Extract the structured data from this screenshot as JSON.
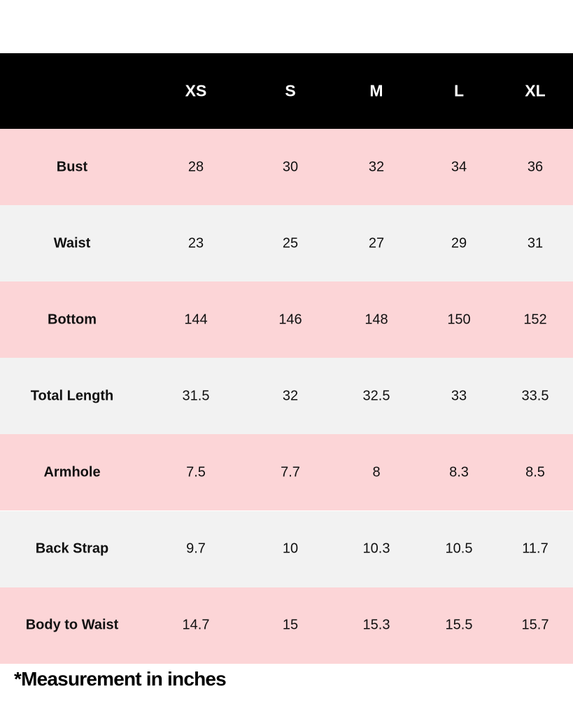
{
  "table": {
    "columns": [
      "",
      "XS",
      "S",
      "M",
      "L",
      "XL"
    ],
    "rows": [
      {
        "label": "Bust",
        "values": [
          "28",
          "30",
          "32",
          "34",
          "36"
        ]
      },
      {
        "label": "Waist",
        "values": [
          "23",
          "25",
          "27",
          "29",
          "31"
        ]
      },
      {
        "label": "Bottom",
        "values": [
          "144",
          "146",
          "148",
          "150",
          "152"
        ]
      },
      {
        "label": "Total Length",
        "values": [
          "31.5",
          "32",
          "32.5",
          "33",
          "33.5"
        ]
      },
      {
        "label": "Armhole",
        "values": [
          "7.5",
          "7.7",
          "8",
          "8.3",
          "8.5"
        ]
      },
      {
        "label": "Back Strap",
        "values": [
          "9.7",
          "10",
          "10.3",
          "10.5",
          "11.7"
        ]
      },
      {
        "label": "Body to Waist",
        "values": [
          "14.7",
          "15",
          "15.3",
          "15.5",
          "15.7"
        ]
      }
    ]
  },
  "footnote": "*Measurement in inches",
  "colors": {
    "header_bg": "#000000",
    "header_text": "#ffffff",
    "row_pink": "#fcd5d7",
    "row_grey": "#f2f2f2"
  }
}
